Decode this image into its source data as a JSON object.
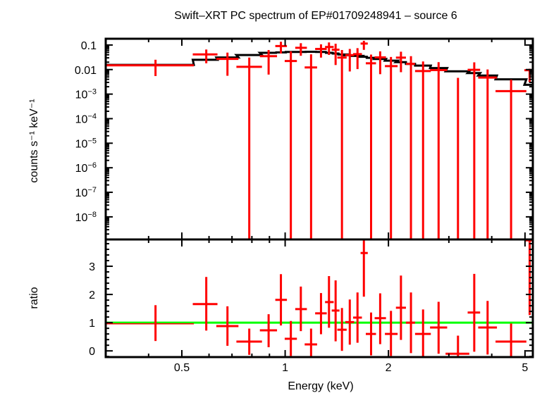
{
  "chart_data": [
    {
      "type": "scatter",
      "panel": "spectrum",
      "title": "Swift–XRT PC spectrum of EP#01709248941 – source 6",
      "ylabel": "counts s⁻¹ keV⁻¹",
      "xscale": "log",
      "yscale": "log",
      "xlim": [
        0.3,
        5.27
      ],
      "ylim": [
        1.2e-09,
        0.18
      ],
      "yticks": [
        {
          "value": 0.1,
          "base": "0.1",
          "exp": ""
        },
        {
          "value": 0.01,
          "base": "0.01",
          "exp": ""
        },
        {
          "value": 0.001,
          "base": "10",
          "exp": "−3"
        },
        {
          "value": 0.0001,
          "base": "10",
          "exp": "−4"
        },
        {
          "value": 1e-05,
          "base": "10",
          "exp": "−5"
        },
        {
          "value": 1e-06,
          "base": "10",
          "exp": "−6"
        },
        {
          "value": 1e-07,
          "base": "10",
          "exp": "−7"
        },
        {
          "value": 1e-08,
          "base": "10",
          "exp": "−8"
        }
      ],
      "data_color": "#ff0000",
      "model_color": "#000000",
      "grid": false
    },
    {
      "type": "scatter",
      "panel": "ratio",
      "xlabel": "Energy (keV)",
      "ylabel": "ratio",
      "xscale": "log",
      "xlim": [
        0.3,
        5.27
      ],
      "ylim": [
        -0.22,
        3.95
      ],
      "xticks": [
        {
          "value": 0.5,
          "label": "0.5"
        },
        {
          "value": 1,
          "label": "1"
        },
        {
          "value": 2,
          "label": "2"
        },
        {
          "value": 5,
          "label": "5"
        }
      ],
      "yticks": [
        {
          "value": 0,
          "label": "0"
        },
        {
          "value": 1,
          "label": "1"
        },
        {
          "value": 2,
          "label": "2"
        },
        {
          "value": 3,
          "label": "3"
        }
      ],
      "reference_line": 1,
      "reference_color": "#00ff00",
      "data_color": "#ff0000",
      "grid": false
    }
  ],
  "bins": [
    {
      "e": 0.419,
      "elo": 0.297,
      "ehi": 0.542,
      "model": 0.0155,
      "ratio": 0.96,
      "rlo": 0.35,
      "rhi": 1.62
    },
    {
      "e": 0.589,
      "elo": 0.538,
      "ehi": 0.635,
      "model": 0.025,
      "ratio": 1.66,
      "rlo": 0.72,
      "rhi": 2.62
    },
    {
      "e": 0.679,
      "elo": 0.63,
      "ehi": 0.731,
      "model": 0.031,
      "ratio": 0.88,
      "rlo": 0.18,
      "rhi": 1.58
    },
    {
      "e": 0.786,
      "elo": 0.721,
      "ehi": 0.856,
      "model": 0.039,
      "ratio": 0.33,
      "rlo": -0.14,
      "rhi": 0.79
    },
    {
      "e": 0.895,
      "elo": 0.844,
      "ehi": 0.947,
      "model": 0.048,
      "ratio": 0.73,
      "rlo": 0.13,
      "rhi": 1.3
    },
    {
      "e": 0.972,
      "elo": 0.936,
      "ehi": 1.012,
      "model": 0.05,
      "ratio": 1.81,
      "rlo": 0.9,
      "rhi": 2.72
    },
    {
      "e": 1.039,
      "elo": 0.997,
      "ehi": 1.082,
      "model": 0.052,
      "ratio": 0.43,
      "rlo": -0.18,
      "rhi": 1.06
    },
    {
      "e": 1.111,
      "elo": 1.07,
      "ehi": 1.157,
      "model": 0.052,
      "ratio": 1.48,
      "rlo": 0.7,
      "rhi": 2.28
    },
    {
      "e": 1.19,
      "elo": 1.14,
      "ehi": 1.239,
      "model": 0.053,
      "ratio": 0.23,
      "rlo": -0.2,
      "rhi": 0.79
    },
    {
      "e": 1.272,
      "elo": 1.223,
      "ehi": 1.322,
      "model": 0.052,
      "ratio": 1.33,
      "rlo": 0.59,
      "rhi": 2.05
    },
    {
      "e": 1.342,
      "elo": 1.307,
      "ehi": 1.385,
      "model": 0.048,
      "ratio": 1.73,
      "rlo": 0.82,
      "rhi": 2.65
    },
    {
      "e": 1.403,
      "elo": 1.367,
      "ehi": 1.44,
      "model": 0.045,
      "ratio": 1.43,
      "rlo": 0.34,
      "rhi": 2.5
    },
    {
      "e": 1.464,
      "elo": 1.419,
      "ehi": 1.511,
      "model": 0.041,
      "ratio": 0.75,
      "rlo": 0.0,
      "rhi": 1.52
    },
    {
      "e": 1.543,
      "elo": 1.497,
      "ehi": 1.589,
      "model": 0.038,
      "ratio": 1.02,
      "rlo": 0.22,
      "rhi": 1.82
    },
    {
      "e": 1.625,
      "elo": 1.578,
      "ehi": 1.674,
      "model": 0.036,
      "ratio": 1.18,
      "rlo": 0.29,
      "rhi": 2.07
    },
    {
      "e": 1.696,
      "elo": 1.659,
      "ehi": 1.741,
      "model": 0.033,
      "ratio": 3.47,
      "rlo": 1.92,
      "rhi": 4.5
    },
    {
      "e": 1.78,
      "elo": 1.718,
      "ehi": 1.84,
      "model": 0.03,
      "ratio": 0.6,
      "rlo": -0.16,
      "rhi": 1.36
    },
    {
      "e": 1.892,
      "elo": 1.823,
      "ehi": 1.967,
      "model": 0.027,
      "ratio": 1.16,
      "rlo": 0.24,
      "rhi": 2.04
    },
    {
      "e": 2.034,
      "elo": 1.953,
      "ehi": 2.127,
      "model": 0.023,
      "ratio": 0.6,
      "rlo": -0.18,
      "rhi": 1.42
    },
    {
      "e": 2.175,
      "elo": 2.103,
      "ehi": 2.249,
      "model": 0.02,
      "ratio": 1.53,
      "rlo": 0.39,
      "rhi": 2.67
    },
    {
      "e": 2.326,
      "elo": 2.249,
      "ehi": 2.391,
      "model": 0.017,
      "ratio": 1.0,
      "rlo": -0.08,
      "rhi": 2.07
    },
    {
      "e": 2.523,
      "elo": 2.391,
      "ehi": 2.658,
      "model": 0.0145,
      "ratio": 0.6,
      "rlo": -0.24,
      "rhi": 1.47
    },
    {
      "e": 2.8,
      "elo": 2.644,
      "ehi": 2.966,
      "model": 0.0115,
      "ratio": 0.83,
      "rlo": -0.1,
      "rhi": 1.74
    },
    {
      "e": 3.189,
      "elo": 2.934,
      "ehi": 3.441,
      "model": 0.0085,
      "ratio": -0.1,
      "rlo": -0.24,
      "rhi": 0.54
    },
    {
      "e": 3.557,
      "elo": 3.403,
      "ehi": 3.7,
      "model": 0.0072,
      "ratio": 1.36,
      "rlo": -0.03,
      "rhi": 2.73
    },
    {
      "e": 3.89,
      "elo": 3.652,
      "ehi": 4.142,
      "model": 0.0057,
      "ratio": 0.83,
      "rlo": -0.13,
      "rhi": 1.77
    },
    {
      "e": 4.554,
      "elo": 4.103,
      "ehi": 5.046,
      "model": 0.004,
      "ratio": 0.33,
      "rlo": -0.24,
      "rhi": 0.97
    },
    {
      "e": 5.158,
      "elo": 4.98,
      "ehi": 5.374,
      "model": 0.0024,
      "ratio": 3.92,
      "rlo": 1.27,
      "rhi": 4.5
    }
  ]
}
